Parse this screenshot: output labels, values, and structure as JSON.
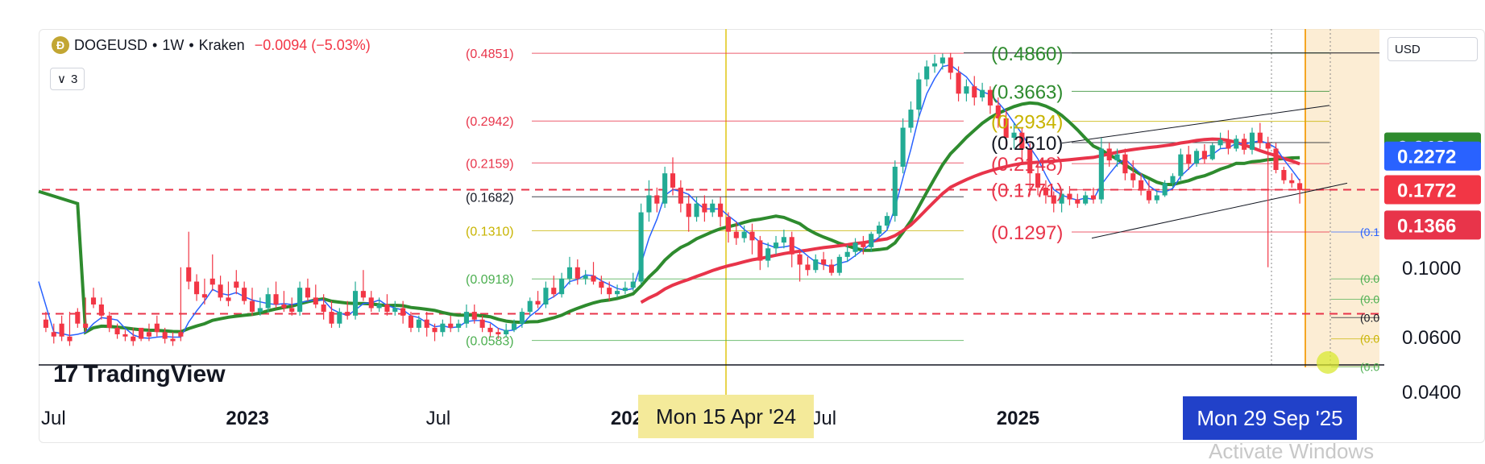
{
  "legend": {
    "symbol_icon_text": "Ð",
    "symbol": "DOGEUSD",
    "interval": "1W",
    "exchange": "Kraken",
    "sep": "•",
    "change": "−0.0094 (−5.03%)"
  },
  "indicators_button": {
    "count": "3"
  },
  "currency": "USD",
  "branding": {
    "mark": "17",
    "name": "TradingView"
  },
  "crosshair_dates": {
    "vertical_line": "Mon 15 Apr '24",
    "current": "Mon 29 Sep '25"
  },
  "watermark": "Activate Windows",
  "colors": {
    "up": "#22ab94",
    "down": "#f23645",
    "ma_green": "#2e8b2e",
    "ma_red": "#e8344a",
    "ema_blue": "#2962ff",
    "fib_red": "#e8344a",
    "fib_yellow": "#c8b400",
    "fib_green": "#4caf50",
    "highlight": "#fbe7c6"
  },
  "chart_data": {
    "type": "candlestick",
    "y_scale": "log",
    "ylim": [
      0.04,
      0.58
    ],
    "y_ticks": [
      "0.1000",
      "0.0600",
      "0.0400"
    ],
    "x_ticks": [
      {
        "label": "Jul",
        "date": "2022-07-01"
      },
      {
        "label": "2023",
        "date": "2023-01-01"
      },
      {
        "label": "Jul",
        "date": "2023-07-01"
      },
      {
        "label": "2024",
        "date": "2024-01-01"
      },
      {
        "label": "Jul",
        "date": "2024-07-01"
      },
      {
        "label": "2025",
        "date": "2025-01-01"
      },
      {
        "label": "Jul",
        "date": "2025-07-01"
      }
    ],
    "price_tags": [
      {
        "value": 0.2429,
        "label": "0.2429",
        "color": "#2e8b2e"
      },
      {
        "value": 0.2272,
        "label": "0.2272",
        "color": "#2962ff"
      },
      {
        "value": 0.1772,
        "label": "0.1772",
        "color": "#f23645"
      },
      {
        "value": 0.1366,
        "label": "0.1366",
        "color": "#e8344a"
      }
    ],
    "fib_left": [
      {
        "value": 0.4851,
        "label": "(0.4851)",
        "color": "#e8344a"
      },
      {
        "value": 0.2942,
        "label": "(0.2942)",
        "color": "#e8344a"
      },
      {
        "value": 0.2159,
        "label": "(0.2159)",
        "color": "#e8344a"
      },
      {
        "value": 0.1682,
        "label": "(0.1682)",
        "color": "#131722"
      },
      {
        "value": 0.131,
        "label": "(0.1310)",
        "color": "#c8b400"
      },
      {
        "value": 0.0918,
        "label": "(0.0918)",
        "color": "#4caf50"
      },
      {
        "value": 0.0583,
        "label": "(0.0583)",
        "color": "#4caf50"
      }
    ],
    "fib_right": [
      {
        "value": 0.486,
        "label": "(0.4860)",
        "color": "#2e8b2e"
      },
      {
        "value": 0.3663,
        "label": "(0.3663)",
        "color": "#2e8b2e"
      },
      {
        "value": 0.2934,
        "label": "(0.2934)",
        "color": "#c8b400"
      },
      {
        "value": 0.251,
        "label": "(0.2510)",
        "color": "#131722"
      },
      {
        "value": 0.2148,
        "label": "(0.2148)",
        "color": "#e8344a"
      },
      {
        "value": 0.1771,
        "label": "(0.1771)",
        "color": "#e8344a"
      },
      {
        "value": 0.1297,
        "label": "(0.1297)",
        "color": "#e8344a"
      }
    ],
    "fib_far_right": [
      {
        "value": 0.1297,
        "label": "(0.1",
        "color": "#2962ff"
      },
      {
        "value": 0.0918,
        "label": "(0.0",
        "color": "#4caf50"
      },
      {
        "value": 0.079,
        "label": "(0.0",
        "color": "#4caf50"
      },
      {
        "value": 0.069,
        "label": "(0.0",
        "color": "#131722"
      },
      {
        "value": 0.059,
        "label": "(0.0",
        "color": "#c8b400"
      },
      {
        "value": 0.048,
        "label": "(0.0",
        "color": "#4caf50"
      }
    ],
    "dashed_levels": [
      0.1772,
      0.071
    ],
    "candles": [
      [
        0.068,
        0.072,
        0.064,
        0.062
      ],
      [
        0.062,
        0.066,
        0.06,
        0.057
      ],
      [
        0.066,
        0.07,
        0.06,
        0.058
      ],
      [
        0.06,
        0.072,
        0.058,
        0.056
      ],
      [
        0.072,
        0.074,
        0.066,
        0.064
      ],
      [
        0.066,
        0.08,
        0.064,
        0.062
      ],
      [
        0.08,
        0.086,
        0.076,
        0.074
      ],
      [
        0.076,
        0.08,
        0.07,
        0.068
      ],
      [
        0.07,
        0.072,
        0.064,
        0.062
      ],
      [
        0.064,
        0.066,
        0.061,
        0.059
      ],
      [
        0.061,
        0.063,
        0.06,
        0.058
      ],
      [
        0.06,
        0.064,
        0.058,
        0.056
      ],
      [
        0.064,
        0.062,
        0.059,
        0.058
      ],
      [
        0.062,
        0.066,
        0.06,
        0.058
      ],
      [
        0.066,
        0.07,
        0.062,
        0.06
      ],
      [
        0.062,
        0.064,
        0.059,
        0.057
      ],
      [
        0.059,
        0.062,
        0.058,
        0.056
      ],
      [
        0.062,
        0.1,
        0.06,
        0.058
      ],
      [
        0.1,
        0.13,
        0.09,
        0.085
      ],
      [
        0.09,
        0.095,
        0.082,
        0.078
      ],
      [
        0.082,
        0.092,
        0.08,
        0.076
      ],
      [
        0.092,
        0.11,
        0.088,
        0.084
      ],
      [
        0.088,
        0.094,
        0.08,
        0.078
      ],
      [
        0.08,
        0.09,
        0.078,
        0.075
      ],
      [
        0.09,
        0.098,
        0.086,
        0.082
      ],
      [
        0.086,
        0.09,
        0.078,
        0.076
      ],
      [
        0.078,
        0.086,
        0.072,
        0.07
      ],
      [
        0.072,
        0.08,
        0.074,
        0.07
      ],
      [
        0.074,
        0.086,
        0.082,
        0.072
      ],
      [
        0.082,
        0.09,
        0.076,
        0.074
      ],
      [
        0.076,
        0.084,
        0.074,
        0.072
      ],
      [
        0.074,
        0.08,
        0.072,
        0.07
      ],
      [
        0.072,
        0.09,
        0.086,
        0.07
      ],
      [
        0.086,
        0.092,
        0.08,
        0.078
      ],
      [
        0.08,
        0.088,
        0.076,
        0.074
      ],
      [
        0.076,
        0.082,
        0.072,
        0.068
      ],
      [
        0.072,
        0.078,
        0.066,
        0.064
      ],
      [
        0.066,
        0.074,
        0.072,
        0.064
      ],
      [
        0.072,
        0.078,
        0.07,
        0.068
      ],
      [
        0.07,
        0.09,
        0.084,
        0.068
      ],
      [
        0.084,
        0.098,
        0.08,
        0.078
      ],
      [
        0.08,
        0.084,
        0.074,
        0.072
      ],
      [
        0.074,
        0.08,
        0.076,
        0.072
      ],
      [
        0.076,
        0.082,
        0.072,
        0.07
      ],
      [
        0.072,
        0.078,
        0.074,
        0.07
      ],
      [
        0.074,
        0.078,
        0.07,
        0.066
      ],
      [
        0.07,
        0.072,
        0.064,
        0.062
      ],
      [
        0.064,
        0.07,
        0.068,
        0.062
      ],
      [
        0.068,
        0.072,
        0.064,
        0.06
      ],
      [
        0.064,
        0.066,
        0.062,
        0.058
      ],
      [
        0.062,
        0.068,
        0.066,
        0.06
      ],
      [
        0.066,
        0.07,
        0.064,
        0.062
      ],
      [
        0.064,
        0.068,
        0.066,
        0.062
      ],
      [
        0.066,
        0.076,
        0.072,
        0.064
      ],
      [
        0.072,
        0.076,
        0.068,
        0.066
      ],
      [
        0.068,
        0.07,
        0.064,
        0.062
      ],
      [
        0.064,
        0.066,
        0.062,
        0.06
      ],
      [
        0.062,
        0.064,
        0.061,
        0.059
      ],
      [
        0.061,
        0.066,
        0.063,
        0.06
      ],
      [
        0.063,
        0.068,
        0.066,
        0.062
      ],
      [
        0.066,
        0.074,
        0.072,
        0.064
      ],
      [
        0.072,
        0.08,
        0.078,
        0.07
      ],
      [
        0.078,
        0.084,
        0.076,
        0.074
      ],
      [
        0.076,
        0.09,
        0.086,
        0.074
      ],
      [
        0.086,
        0.094,
        0.082,
        0.08
      ],
      [
        0.082,
        0.096,
        0.092,
        0.08
      ],
      [
        0.092,
        0.108,
        0.1,
        0.088
      ],
      [
        0.1,
        0.106,
        0.092,
        0.088
      ],
      [
        0.092,
        0.098,
        0.094,
        0.088
      ],
      [
        0.094,
        0.104,
        0.09,
        0.088
      ],
      [
        0.09,
        0.094,
        0.086,
        0.082
      ],
      [
        0.086,
        0.09,
        0.082,
        0.078
      ],
      [
        0.082,
        0.088,
        0.084,
        0.08
      ],
      [
        0.084,
        0.09,
        0.086,
        0.082
      ],
      [
        0.086,
        0.096,
        0.09,
        0.084
      ],
      [
        0.09,
        0.16,
        0.15,
        0.088
      ],
      [
        0.15,
        0.19,
        0.17,
        0.14
      ],
      [
        0.17,
        0.18,
        0.16,
        0.15
      ],
      [
        0.16,
        0.21,
        0.2,
        0.155
      ],
      [
        0.2,
        0.225,
        0.18,
        0.17
      ],
      [
        0.18,
        0.19,
        0.16,
        0.15
      ],
      [
        0.16,
        0.17,
        0.145,
        0.13
      ],
      [
        0.145,
        0.168,
        0.16,
        0.14
      ],
      [
        0.16,
        0.17,
        0.15,
        0.14
      ],
      [
        0.15,
        0.165,
        0.16,
        0.145
      ],
      [
        0.16,
        0.168,
        0.145,
        0.135
      ],
      [
        0.145,
        0.15,
        0.13,
        0.12
      ],
      [
        0.13,
        0.14,
        0.124,
        0.118
      ],
      [
        0.124,
        0.136,
        0.13,
        0.12
      ],
      [
        0.13,
        0.138,
        0.122,
        0.11
      ],
      [
        0.122,
        0.126,
        0.105,
        0.098
      ],
      [
        0.105,
        0.12,
        0.115,
        0.1
      ],
      [
        0.115,
        0.126,
        0.12,
        0.11
      ],
      [
        0.12,
        0.132,
        0.125,
        0.115
      ],
      [
        0.125,
        0.13,
        0.11,
        0.1
      ],
      [
        0.11,
        0.114,
        0.102,
        0.09
      ],
      [
        0.102,
        0.108,
        0.098,
        0.094
      ],
      [
        0.098,
        0.11,
        0.106,
        0.096
      ],
      [
        0.106,
        0.112,
        0.102,
        0.098
      ],
      [
        0.102,
        0.106,
        0.096,
        0.094
      ],
      [
        0.096,
        0.11,
        0.108,
        0.094
      ],
      [
        0.108,
        0.118,
        0.112,
        0.104
      ],
      [
        0.112,
        0.124,
        0.12,
        0.108
      ],
      [
        0.12,
        0.126,
        0.116,
        0.11
      ],
      [
        0.116,
        0.13,
        0.128,
        0.112
      ],
      [
        0.128,
        0.14,
        0.136,
        0.124
      ],
      [
        0.136,
        0.15,
        0.146,
        0.132
      ],
      [
        0.146,
        0.22,
        0.21,
        0.14
      ],
      [
        0.21,
        0.3,
        0.28,
        0.2
      ],
      [
        0.28,
        0.34,
        0.32,
        0.27
      ],
      [
        0.32,
        0.42,
        0.4,
        0.3
      ],
      [
        0.4,
        0.46,
        0.44,
        0.38
      ],
      [
        0.44,
        0.48,
        0.45,
        0.42
      ],
      [
        0.45,
        0.484,
        0.47,
        0.43
      ],
      [
        0.47,
        0.486,
        0.42,
        0.4
      ],
      [
        0.42,
        0.44,
        0.36,
        0.34
      ],
      [
        0.36,
        0.4,
        0.38,
        0.34
      ],
      [
        0.38,
        0.41,
        0.35,
        0.33
      ],
      [
        0.35,
        0.39,
        0.37,
        0.34
      ],
      [
        0.37,
        0.38,
        0.33,
        0.31
      ],
      [
        0.33,
        0.35,
        0.3,
        0.28
      ],
      [
        0.3,
        0.32,
        0.26,
        0.24
      ],
      [
        0.26,
        0.29,
        0.27,
        0.24
      ],
      [
        0.27,
        0.28,
        0.24,
        0.22
      ],
      [
        0.24,
        0.25,
        0.2,
        0.17
      ],
      [
        0.2,
        0.215,
        0.18,
        0.17
      ],
      [
        0.18,
        0.19,
        0.17,
        0.16
      ],
      [
        0.17,
        0.175,
        0.16,
        0.15
      ],
      [
        0.16,
        0.178,
        0.172,
        0.15
      ],
      [
        0.172,
        0.182,
        0.165,
        0.158
      ],
      [
        0.165,
        0.172,
        0.16,
        0.155
      ],
      [
        0.16,
        0.175,
        0.17,
        0.158
      ],
      [
        0.17,
        0.18,
        0.165,
        0.16
      ],
      [
        0.165,
        0.26,
        0.24,
        0.16
      ],
      [
        0.24,
        0.25,
        0.22,
        0.21
      ],
      [
        0.22,
        0.24,
        0.23,
        0.21
      ],
      [
        0.23,
        0.24,
        0.2,
        0.19
      ],
      [
        0.2,
        0.22,
        0.19,
        0.18
      ],
      [
        0.19,
        0.2,
        0.176,
        0.17
      ],
      [
        0.176,
        0.19,
        0.164,
        0.16
      ],
      [
        0.164,
        0.176,
        0.17,
        0.16
      ],
      [
        0.17,
        0.19,
        0.186,
        0.168
      ],
      [
        0.186,
        0.2,
        0.196,
        0.18
      ],
      [
        0.196,
        0.24,
        0.23,
        0.19
      ],
      [
        0.23,
        0.245,
        0.215,
        0.205
      ],
      [
        0.215,
        0.24,
        0.236,
        0.21
      ],
      [
        0.236,
        0.248,
        0.222,
        0.215
      ],
      [
        0.222,
        0.25,
        0.246,
        0.22
      ],
      [
        0.246,
        0.27,
        0.256,
        0.24
      ],
      [
        0.256,
        0.275,
        0.24,
        0.23
      ],
      [
        0.24,
        0.265,
        0.258,
        0.235
      ],
      [
        0.258,
        0.268,
        0.238,
        0.23
      ],
      [
        0.238,
        0.28,
        0.27,
        0.23
      ],
      [
        0.27,
        0.29,
        0.25,
        0.24
      ],
      [
        0.25,
        0.262,
        0.24,
        0.1
      ],
      [
        0.24,
        0.25,
        0.205,
        0.2
      ],
      [
        0.205,
        0.21,
        0.19,
        0.185
      ],
      [
        0.19,
        0.2,
        0.186,
        0.18
      ],
      [
        0.186,
        0.192,
        0.177,
        0.16
      ]
    ]
  }
}
